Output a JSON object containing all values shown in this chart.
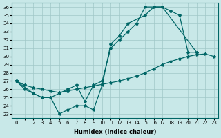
{
  "bg_color": "#c8e8e8",
  "grid_color": "#a0c8c8",
  "line_color": "#006666",
  "xlabel": "Humidex (Indice chaleur)",
  "xlim": [
    -0.5,
    23.5
  ],
  "ylim": [
    22.5,
    36.5
  ],
  "yticks": [
    23,
    24,
    25,
    26,
    27,
    28,
    29,
    30,
    31,
    32,
    33,
    34,
    35,
    36
  ],
  "xticks": [
    0,
    1,
    2,
    3,
    4,
    5,
    6,
    7,
    8,
    9,
    10,
    11,
    12,
    13,
    14,
    15,
    16,
    17,
    18,
    19,
    20,
    21,
    22,
    23
  ],
  "line1_x": [
    0,
    1,
    2,
    3,
    4,
    5,
    6,
    7,
    8,
    9,
    10,
    11,
    12,
    13,
    14,
    15,
    16,
    17,
    18,
    19,
    20,
    21
  ],
  "line1_y": [
    27.0,
    26.0,
    25.5,
    25.0,
    25.0,
    25.5,
    26.0,
    26.5,
    24.5,
    26.5,
    27.0,
    31.0,
    32.0,
    33.0,
    34.0,
    36.0,
    36.0,
    36.0,
    35.5,
    35.0,
    30.5,
    30.5
  ],
  "line2_x": [
    0,
    2,
    3,
    4,
    5,
    6,
    7,
    8,
    9,
    10,
    11,
    12,
    13,
    15,
    16,
    17,
    21
  ],
  "line2_y": [
    27.0,
    25.5,
    25.0,
    25.0,
    23.0,
    23.5,
    24.0,
    24.0,
    23.5,
    26.5,
    31.5,
    32.5,
    34.0,
    35.0,
    36.0,
    36.0,
    30.5
  ],
  "line3_x": [
    0,
    1,
    2,
    3,
    4,
    5,
    6,
    7,
    8,
    9,
    10,
    11,
    12,
    13,
    14,
    15,
    16,
    17,
    18,
    19,
    20,
    21,
    22,
    23
  ],
  "line3_y": [
    27.0,
    26.5,
    26.2,
    26.0,
    25.8,
    25.6,
    25.8,
    26.0,
    26.2,
    26.4,
    26.6,
    26.8,
    27.0,
    27.3,
    27.6,
    28.0,
    28.5,
    29.0,
    29.4,
    29.7,
    30.0,
    30.2,
    30.3,
    30.0
  ]
}
